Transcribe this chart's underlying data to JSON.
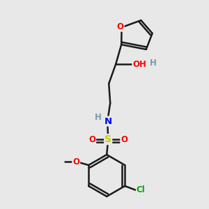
{
  "background_color": "#e8e8e8",
  "bond_color": "#1a1a1a",
  "atom_colors": {
    "O": "#ff0000",
    "N": "#0000ff",
    "S": "#cccc00",
    "Cl": "#00aa00",
    "H": "#7a9aaa",
    "C": "#1a1a1a"
  },
  "figsize": [
    3.0,
    3.0
  ],
  "dpi": 100
}
